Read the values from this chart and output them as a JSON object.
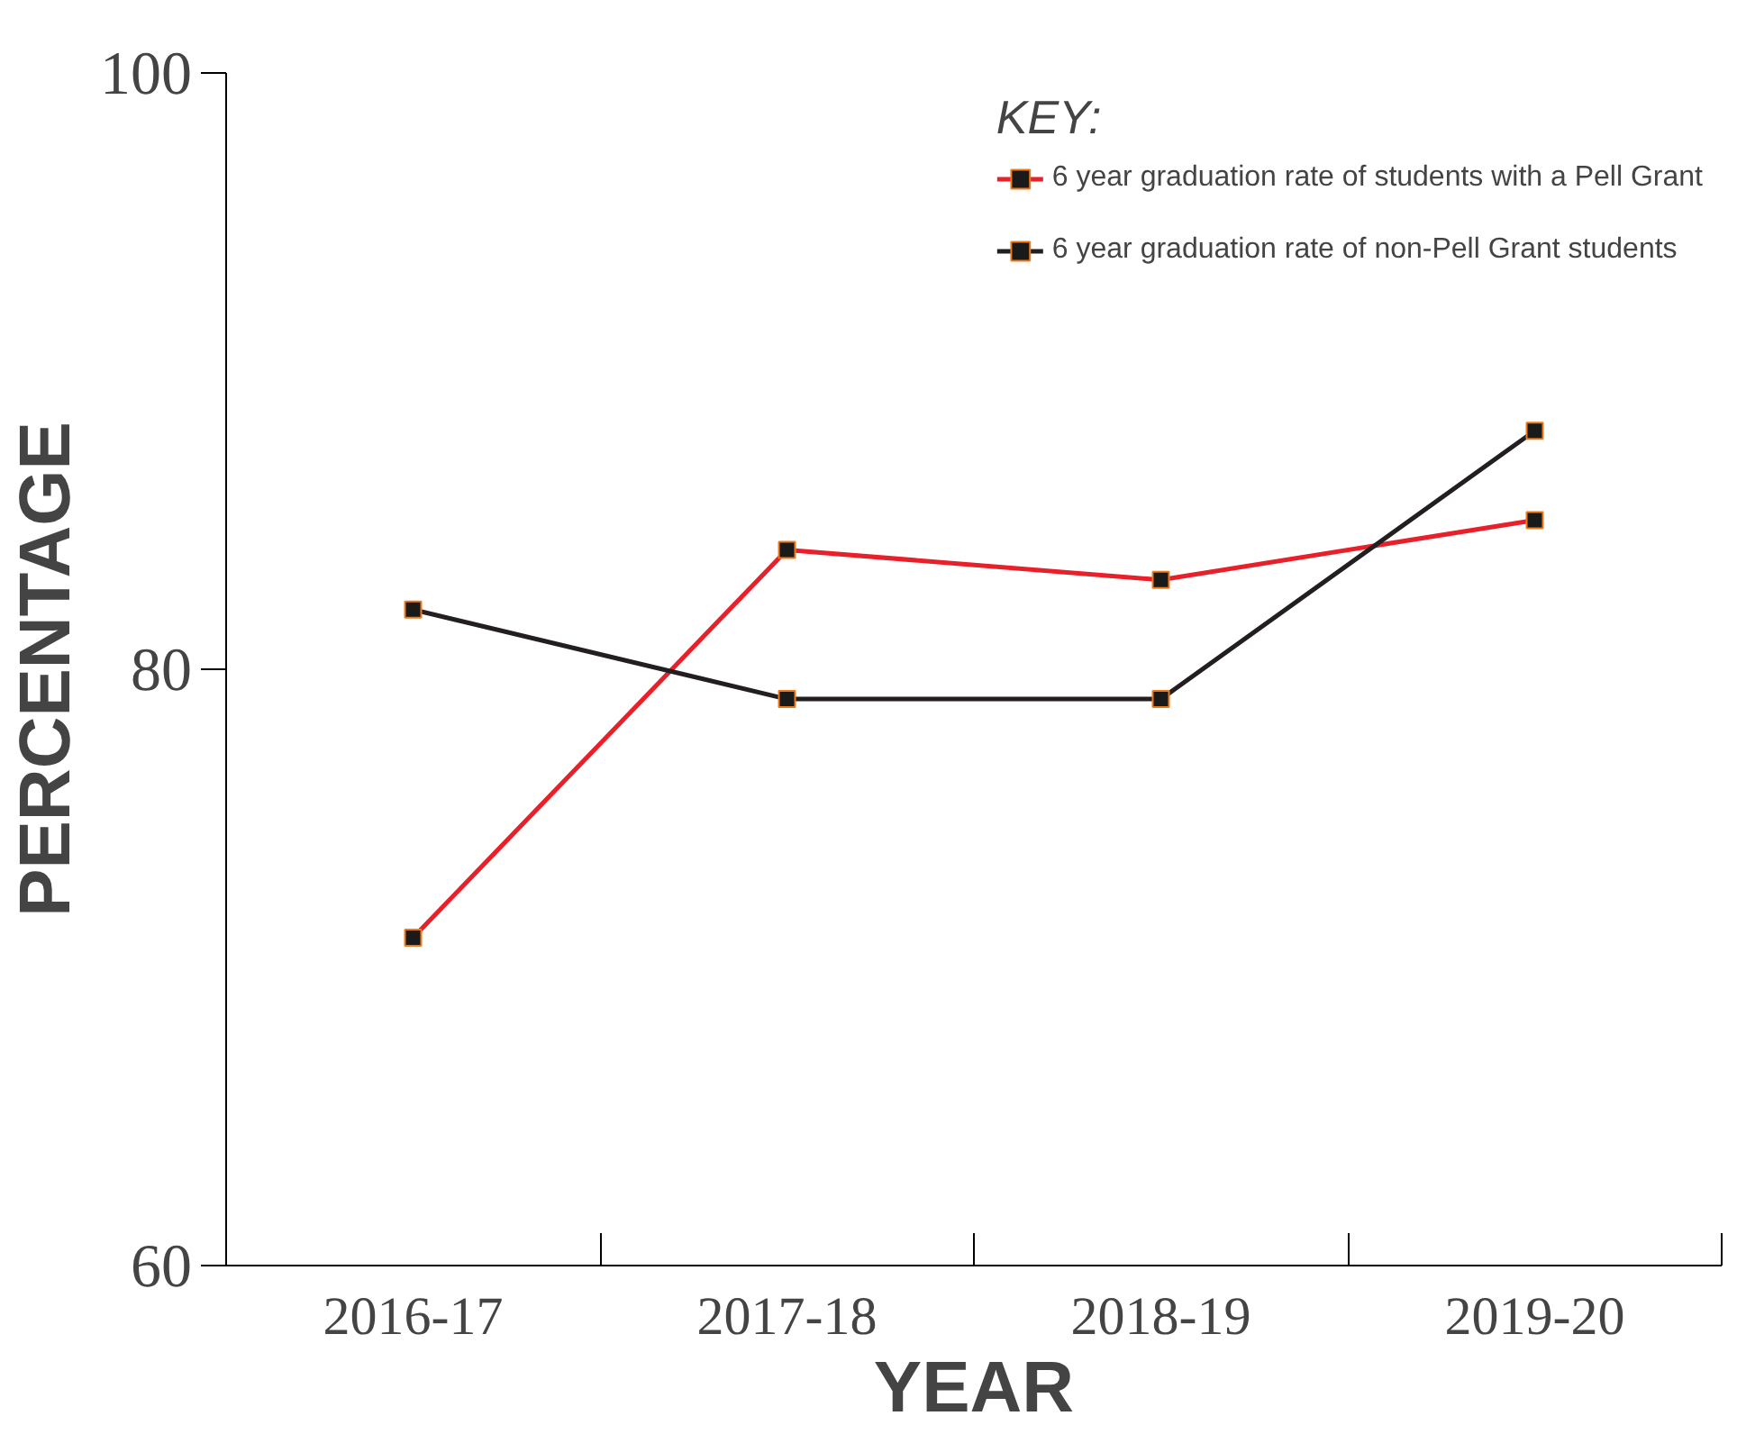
{
  "chart_data": {
    "type": "line",
    "xlabel": "YEAR",
    "ylabel": "PERCENTAGE",
    "legend_title": "KEY:",
    "categories": [
      "2016-17",
      "2017-18",
      "2018-19",
      "2019-20"
    ],
    "series": [
      {
        "name": "6 year graduation rate of students with a Pell Grant",
        "color": "#e8202a",
        "values": [
          71,
          84,
          83,
          85
        ]
      },
      {
        "name": "6 year graduation rate of non-Pell Grant students",
        "color": "#231f20",
        "values": [
          82,
          79,
          79,
          88
        ]
      }
    ],
    "ylim": [
      60,
      100
    ],
    "yticks": [
      60,
      80,
      100
    ],
    "grid": false,
    "legend": "top right",
    "marker": "square",
    "line_style": "solid"
  }
}
